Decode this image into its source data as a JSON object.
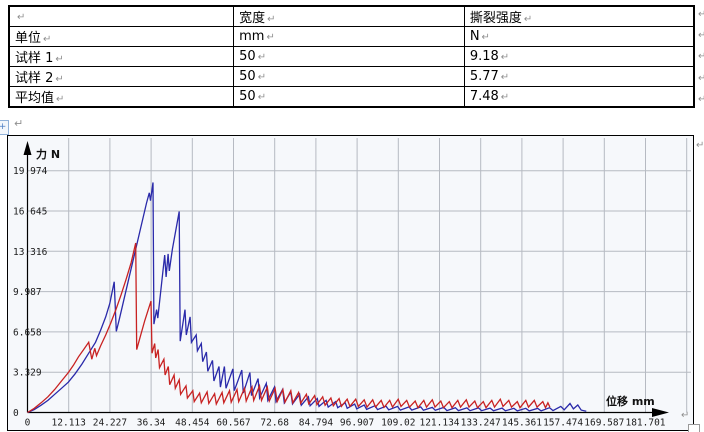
{
  "marks": {
    "pilcrow": "↵",
    "anchor_glyph": "+"
  },
  "table": {
    "rows": [
      [
        "",
        "宽度",
        "撕裂强度"
      ],
      [
        "单位",
        "mm",
        "N"
      ],
      [
        "试样 1",
        "50",
        "9.18"
      ],
      [
        "试样 2",
        "50",
        "5.77"
      ],
      [
        "平均值",
        "50",
        "7.48"
      ]
    ]
  },
  "chart_data": {
    "type": "line",
    "title": "",
    "xlabel": "位移 mm",
    "ylabel": "力 N",
    "grid": true,
    "legend": "none",
    "xlim": [
      0,
      193.8
    ],
    "ylim": [
      0,
      21.3
    ],
    "x_ticks": [
      "0",
      "12.113",
      "24.227",
      "36.34",
      "48.454",
      "60.567",
      "72.68",
      "84.794",
      "96.907",
      "109.02",
      "121.134",
      "133.247",
      "145.361",
      "157.474",
      "169.587",
      "181.701"
    ],
    "y_ticks": [
      "0",
      "3.329",
      "6.658",
      "9.987",
      "13.316",
      "16.645",
      "19.974"
    ],
    "x_tick_step": 12.113,
    "y_tick_step": 3.329,
    "axis_color": "#000000",
    "grid_color": "#b6bac2",
    "series": [
      {
        "name": "series-blue-specimen-1",
        "color": "#2a2aaa",
        "peak_force": 19.0,
        "points": [
          [
            0,
            0
          ],
          [
            2,
            0.25
          ],
          [
            4,
            0.6
          ],
          [
            6,
            1.0
          ],
          [
            8,
            1.5
          ],
          [
            10,
            2.0
          ],
          [
            12,
            2.5
          ],
          [
            14,
            3.2
          ],
          [
            16,
            4.0
          ],
          [
            18,
            4.9
          ],
          [
            20,
            5.8
          ],
          [
            21.5,
            6.8
          ],
          [
            23,
            7.9
          ],
          [
            24.2,
            9.0
          ],
          [
            25.5,
            10.8
          ],
          [
            26.1,
            6.7
          ],
          [
            27,
            7.7
          ],
          [
            28,
            8.9
          ],
          [
            29,
            10.1
          ],
          [
            30,
            11.3
          ],
          [
            31,
            12.5
          ],
          [
            32,
            13.7
          ],
          [
            33,
            14.9
          ],
          [
            34,
            16.1
          ],
          [
            35,
            17.3
          ],
          [
            35.8,
            18.15
          ],
          [
            36.15,
            17.5
          ],
          [
            36.9,
            19.0
          ],
          [
            37.15,
            7.3
          ],
          [
            37.95,
            8.5
          ],
          [
            38.3,
            7.8
          ],
          [
            40.35,
            13.0
          ],
          [
            40.75,
            11.2
          ],
          [
            41.35,
            13.1
          ],
          [
            41.7,
            11.7
          ],
          [
            42.6,
            13.5
          ],
          [
            44.6,
            16.6
          ],
          [
            44.9,
            5.9
          ],
          [
            46.3,
            8.5
          ],
          [
            46.7,
            6.4
          ],
          [
            47.8,
            7.9
          ],
          [
            48.2,
            5.8
          ],
          [
            49.6,
            6.4
          ],
          [
            49.95,
            5.1
          ],
          [
            51.1,
            5.7
          ],
          [
            51.5,
            4.2
          ],
          [
            52.6,
            5.0
          ],
          [
            53,
            3.4
          ],
          [
            54.4,
            4.3
          ],
          [
            54.8,
            2.6
          ],
          [
            56.3,
            3.8
          ],
          [
            56.7,
            2.1
          ],
          [
            57.9,
            3.8
          ],
          [
            58.35,
            2.0
          ],
          [
            60.4,
            3.6
          ],
          [
            60.8,
            1.8
          ],
          [
            63,
            3.5
          ],
          [
            63.45,
            1.6
          ],
          [
            65.4,
            3.3
          ],
          [
            65.85,
            1.4
          ],
          [
            67.8,
            2.8
          ],
          [
            68.25,
            1.2
          ],
          [
            70.2,
            2.4
          ],
          [
            70.65,
            1.0
          ],
          [
            72.6,
            2.1
          ],
          [
            73.05,
            0.9
          ],
          [
            75,
            1.9
          ],
          [
            75.5,
            0.8
          ],
          [
            77.4,
            1.7
          ],
          [
            77.9,
            0.7
          ],
          [
            80,
            1.5
          ],
          [
            80.5,
            0.6
          ],
          [
            82.6,
            1.3
          ],
          [
            83.1,
            0.55
          ],
          [
            85.2,
            1.15
          ],
          [
            85.7,
            0.5
          ],
          [
            87.8,
            1.0
          ],
          [
            88.4,
            0.45
          ],
          [
            90.6,
            0.9
          ],
          [
            91.2,
            0.4
          ],
          [
            93.4,
            0.8
          ],
          [
            94,
            0.35
          ],
          [
            96.2,
            0.7
          ],
          [
            96.8,
            0.3
          ],
          [
            99,
            0.62
          ],
          [
            99.7,
            0.26
          ],
          [
            102.2,
            0.56
          ],
          [
            102.9,
            0.24
          ],
          [
            105.4,
            0.52
          ],
          [
            106.2,
            0.22
          ],
          [
            108.8,
            0.5
          ],
          [
            109.6,
            0.2
          ],
          [
            112.2,
            0.46
          ],
          [
            113,
            0.2
          ],
          [
            115.6,
            0.46
          ],
          [
            116.4,
            0.18
          ],
          [
            119,
            0.42
          ],
          [
            119.9,
            0.18
          ],
          [
            122.4,
            0.42
          ],
          [
            123.3,
            0.16
          ],
          [
            125.8,
            0.4
          ],
          [
            126.7,
            0.16
          ],
          [
            129.2,
            0.38
          ],
          [
            130.1,
            0.15
          ],
          [
            132.6,
            0.38
          ],
          [
            133.5,
            0.15
          ],
          [
            136,
            0.36
          ],
          [
            137,
            0.14
          ],
          [
            139.5,
            0.36
          ],
          [
            140.5,
            0.14
          ],
          [
            143,
            0.35
          ],
          [
            144,
            0.13
          ],
          [
            146.5,
            0.35
          ],
          [
            147.5,
            0.13
          ],
          [
            150,
            0.34
          ],
          [
            151,
            0.13
          ],
          [
            153.5,
            0.4
          ],
          [
            154.5,
            0.16
          ],
          [
            156.8,
            0.5
          ],
          [
            157.8,
            0.22
          ],
          [
            159.5,
            0.74
          ],
          [
            160.5,
            0.3
          ],
          [
            161.8,
            0.62
          ],
          [
            162.8,
            0.2
          ],
          [
            164.3,
            0.1
          ]
        ]
      },
      {
        "name": "series-red-specimen-2",
        "color": "#c82222",
        "peak_force": 14.0,
        "points": [
          [
            0,
            0
          ],
          [
            2,
            0.35
          ],
          [
            4,
            0.8
          ],
          [
            6,
            1.3
          ],
          [
            8,
            1.9
          ],
          [
            10,
            2.6
          ],
          [
            12,
            3.3
          ],
          [
            13.5,
            3.9
          ],
          [
            15,
            4.6
          ],
          [
            16.5,
            5.2
          ],
          [
            18,
            5.8
          ],
          [
            18.9,
            4.4
          ],
          [
            19.8,
            5.3
          ],
          [
            20.3,
            4.7
          ],
          [
            21.5,
            5.5
          ],
          [
            23,
            6.4
          ],
          [
            24.5,
            7.4
          ],
          [
            26,
            8.5
          ],
          [
            27.5,
            9.7
          ],
          [
            29,
            11.0
          ],
          [
            30.5,
            12.4
          ],
          [
            31.8,
            14.0
          ],
          [
            32.1,
            5.2
          ],
          [
            33.2,
            6.3
          ],
          [
            34.5,
            7.6
          ],
          [
            36.3,
            9.2
          ],
          [
            36.6,
            4.9
          ],
          [
            37.4,
            5.7
          ],
          [
            37.7,
            4.5
          ],
          [
            38.4,
            5.2
          ],
          [
            38.8,
            3.7
          ],
          [
            40.1,
            4.4
          ],
          [
            40.45,
            3.1
          ],
          [
            41.4,
            3.8
          ],
          [
            41.8,
            2.3
          ],
          [
            43.1,
            3.1
          ],
          [
            43.45,
            2.0
          ],
          [
            44.6,
            2.7
          ],
          [
            45,
            1.5
          ],
          [
            46.6,
            2.2
          ],
          [
            47,
            1.2
          ],
          [
            48.6,
            1.8
          ],
          [
            49,
            0.9
          ],
          [
            50.6,
            1.6
          ],
          [
            51.1,
            0.8
          ],
          [
            52.8,
            1.7
          ],
          [
            53.3,
            0.75
          ],
          [
            55,
            1.55
          ],
          [
            55.5,
            0.7
          ],
          [
            57.2,
            1.65
          ],
          [
            57.7,
            0.8
          ],
          [
            59.4,
            1.8
          ],
          [
            59.9,
            0.85
          ],
          [
            61.6,
            1.9
          ],
          [
            62.1,
            0.9
          ],
          [
            63.8,
            2.0
          ],
          [
            64.3,
            0.95
          ],
          [
            66,
            2.1
          ],
          [
            66.5,
            1.0
          ],
          [
            68.2,
            2.2
          ],
          [
            68.8,
            1.0
          ],
          [
            70.5,
            2.1
          ],
          [
            71.1,
            0.95
          ],
          [
            72.8,
            2.0
          ],
          [
            73.4,
            0.9
          ],
          [
            75.1,
            1.9
          ],
          [
            75.7,
            0.85
          ],
          [
            77.4,
            1.8
          ],
          [
            78,
            0.8
          ],
          [
            79.7,
            1.65
          ],
          [
            80.3,
            0.75
          ],
          [
            82,
            1.5
          ],
          [
            82.7,
            0.7
          ],
          [
            84.4,
            1.4
          ],
          [
            85.1,
            0.65
          ],
          [
            86.8,
            1.3
          ],
          [
            87.5,
            0.6
          ],
          [
            89.2,
            1.2
          ],
          [
            89.9,
            0.55
          ],
          [
            91.6,
            1.15
          ],
          [
            92.3,
            0.5
          ],
          [
            94,
            1.1
          ],
          [
            94.8,
            0.5
          ],
          [
            96.5,
            1.1
          ],
          [
            97.3,
            0.5
          ],
          [
            99,
            1.05
          ],
          [
            99.8,
            0.45
          ],
          [
            101.5,
            1.05
          ],
          [
            102.3,
            0.45
          ],
          [
            104,
            1.0
          ],
          [
            104.8,
            0.42
          ],
          [
            106.5,
            1.0
          ],
          [
            107.3,
            0.45
          ],
          [
            109,
            1.1
          ],
          [
            109.8,
            0.5
          ],
          [
            111.5,
            1.0
          ],
          [
            112.3,
            0.45
          ],
          [
            114,
            0.95
          ],
          [
            114.8,
            0.4
          ],
          [
            116.5,
            1.0
          ],
          [
            117.3,
            0.45
          ],
          [
            119,
            1.05
          ],
          [
            119.8,
            0.45
          ],
          [
            121.5,
            0.95
          ],
          [
            122.3,
            0.4
          ],
          [
            124,
            0.9
          ],
          [
            124.8,
            0.4
          ],
          [
            126.5,
            1.0
          ],
          [
            127.3,
            0.45
          ],
          [
            129,
            1.05
          ],
          [
            129.8,
            0.45
          ],
          [
            131.5,
            0.95
          ],
          [
            132.3,
            0.4
          ],
          [
            134,
            0.9
          ],
          [
            134.8,
            0.4
          ],
          [
            136.5,
            1.0
          ],
          [
            137.3,
            0.45
          ],
          [
            139,
            1.1
          ],
          [
            139.8,
            0.5
          ],
          [
            141.5,
            1.0
          ],
          [
            142.3,
            0.45
          ],
          [
            144,
            0.9
          ],
          [
            144.8,
            0.4
          ],
          [
            146.5,
            1.0
          ],
          [
            147.3,
            0.45
          ],
          [
            149,
            1.0
          ],
          [
            149.8,
            0.45
          ],
          [
            151.5,
            0.9
          ],
          [
            152.3,
            0.4
          ],
          [
            153,
            0.8
          ],
          [
            153.6,
            0.45
          ]
        ]
      }
    ]
  }
}
